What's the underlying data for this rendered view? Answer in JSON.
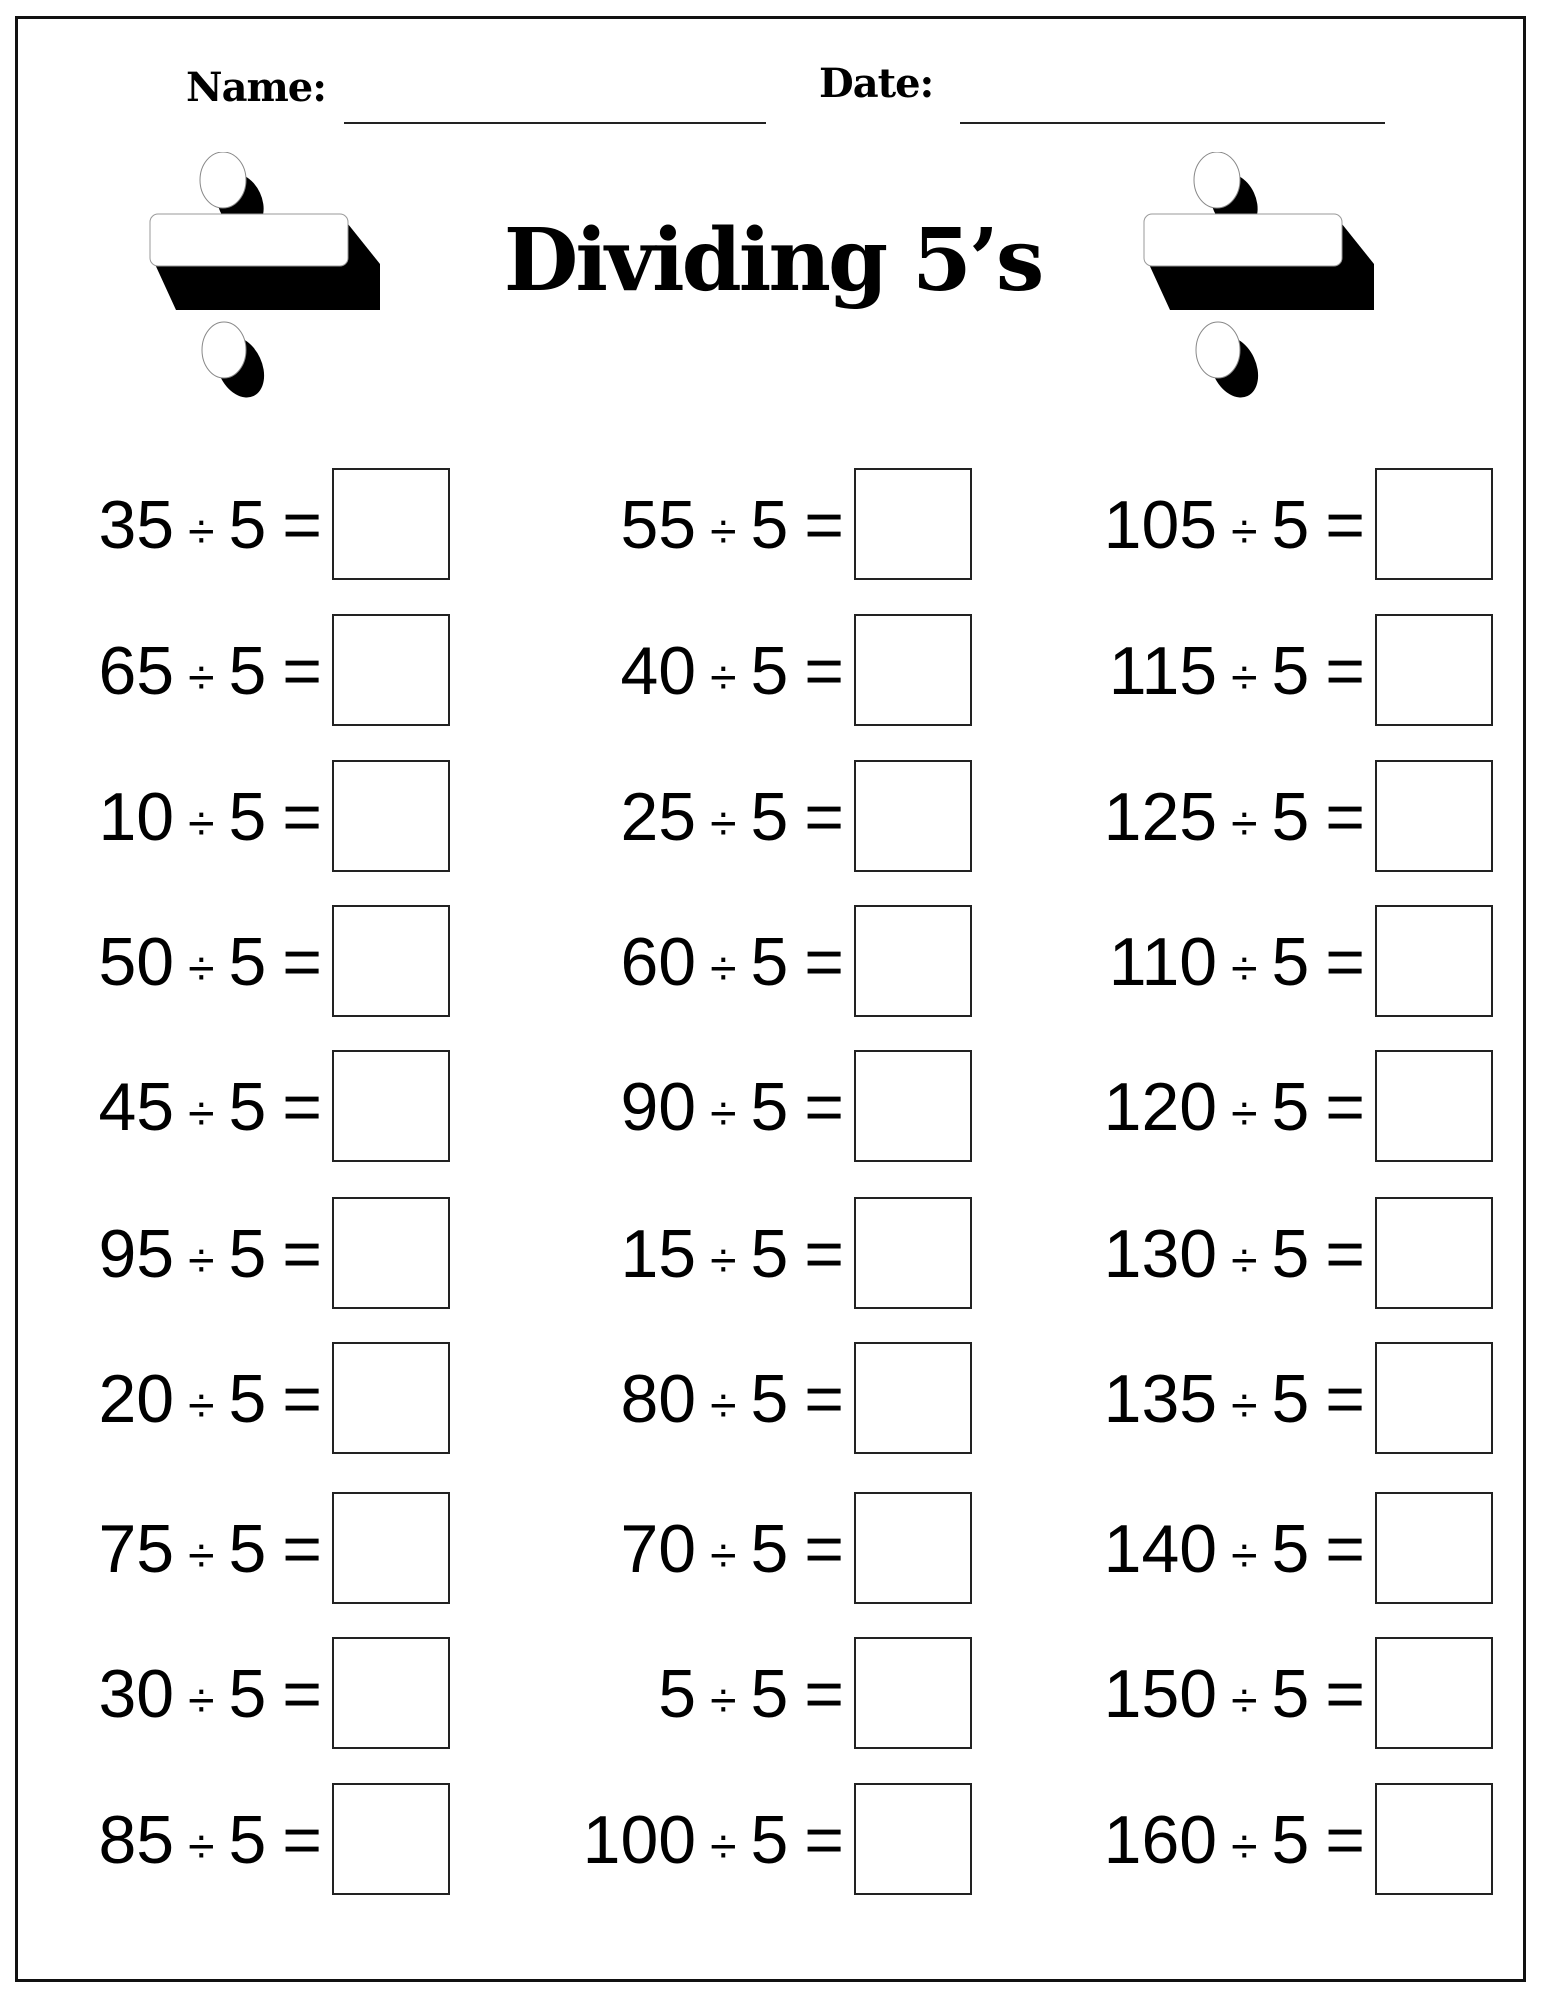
{
  "header": {
    "name_label": "Name:",
    "date_label": "Date:"
  },
  "title": "Dividing 5’s",
  "icons": {
    "left": "division-sign-icon",
    "right": "division-sign-icon"
  },
  "operator": "÷",
  "equals": "=",
  "columns": [
    [
      {
        "dividend": "35",
        "divisor": "5"
      },
      {
        "dividend": "65",
        "divisor": "5"
      },
      {
        "dividend": "10",
        "divisor": "5"
      },
      {
        "dividend": "50",
        "divisor": "5"
      },
      {
        "dividend": "45",
        "divisor": "5"
      },
      {
        "dividend": "95",
        "divisor": "5"
      },
      {
        "dividend": "20",
        "divisor": "5"
      },
      {
        "dividend": "75",
        "divisor": "5"
      },
      {
        "dividend": "30",
        "divisor": "5"
      },
      {
        "dividend": "85",
        "divisor": "5"
      }
    ],
    [
      {
        "dividend": "55",
        "divisor": "5"
      },
      {
        "dividend": "40",
        "divisor": "5"
      },
      {
        "dividend": "25",
        "divisor": "5"
      },
      {
        "dividend": "60",
        "divisor": "5"
      },
      {
        "dividend": "90",
        "divisor": "5"
      },
      {
        "dividend": "15",
        "divisor": "5"
      },
      {
        "dividend": "80",
        "divisor": "5"
      },
      {
        "dividend": "70",
        "divisor": "5"
      },
      {
        "dividend": "5",
        "divisor": "5"
      },
      {
        "dividend": "100",
        "divisor": "5"
      }
    ],
    [
      {
        "dividend": "105",
        "divisor": "5"
      },
      {
        "dividend": "115",
        "divisor": "5"
      },
      {
        "dividend": "125",
        "divisor": "5"
      },
      {
        "dividend": "110",
        "divisor": "5"
      },
      {
        "dividend": "120",
        "divisor": "5"
      },
      {
        "dividend": "130",
        "divisor": "5"
      },
      {
        "dividend": "135",
        "divisor": "5"
      },
      {
        "dividend": "140",
        "divisor": "5"
      },
      {
        "dividend": "150",
        "divisor": "5"
      },
      {
        "dividend": "160",
        "divisor": "5"
      }
    ]
  ]
}
